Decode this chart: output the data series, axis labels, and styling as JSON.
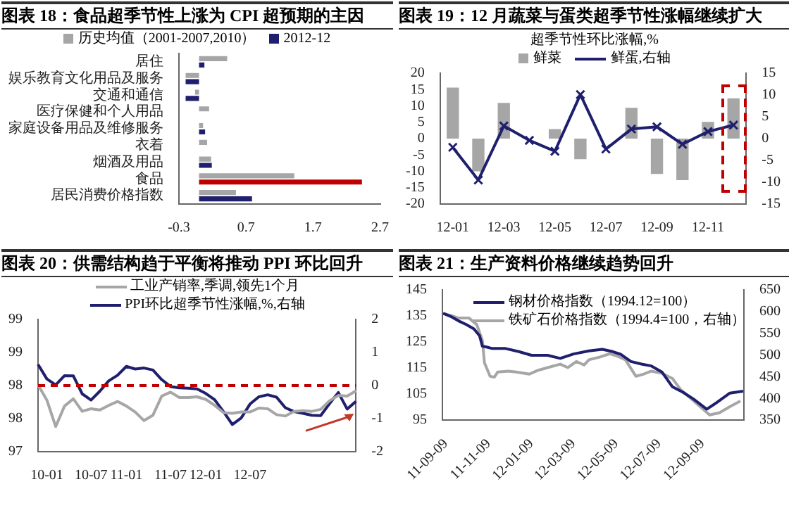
{
  "chart_data": [
    {
      "type": "bar",
      "orientation": "horizontal",
      "title": "图表 18：食品超季节性上涨为 CPI 超预期的主因",
      "categories": [
        "居住",
        "娱乐教育文化用品及服务",
        "交通和通信",
        "医疗保健和个人用品",
        "家庭设备用品及维修服务",
        "衣着",
        "烟酒及用品",
        "食品",
        "居民消费价格指数"
      ],
      "series": [
        {
          "name": "历史均值（2001-2007,2010）",
          "color": "#a6a6a6",
          "values": [
            0.42,
            -0.2,
            -0.06,
            0.15,
            0.06,
            0.12,
            0.18,
            1.42,
            0.55
          ]
        },
        {
          "name": "2012-12",
          "color": "#1f1f6e",
          "colors": [
            "#1f1f6e",
            "#1f1f6e",
            "#1f1f6e",
            "#1f1f6e",
            "#1f1f6e",
            "#1f1f6e",
            "#1f1f6e",
            "#c00000",
            "#1f1f6e"
          ],
          "values": [
            0.08,
            -0.2,
            -0.2,
            0,
            0.09,
            0,
            0.19,
            2.43,
            0.79
          ]
        }
      ],
      "xlim": [
        -0.3,
        2.7
      ],
      "xticks": [
        -0.3,
        0.7,
        1.7,
        2.7
      ],
      "legend": "top",
      "grid": false
    },
    {
      "type": "bar",
      "title": "图表 19：12 月蔬菜与蛋类超季节性涨幅继续扩大",
      "subtitle": "超季节性环比涨幅,%",
      "categories": [
        "12-01",
        null,
        "12-03",
        null,
        "12-05",
        null,
        "12-07",
        null,
        "12-09",
        null,
        "12-11",
        null
      ],
      "series": [
        {
          "name": "鲜菜",
          "type": "bar",
          "color": "#a6a6a6",
          "values": [
            15.6,
            -10,
            10.9,
            0,
            2.9,
            -6.3,
            null,
            9.4,
            -10.8,
            -12.7,
            5.1,
            12.3
          ]
        },
        {
          "name": "鲜蛋,右轴",
          "type": "line",
          "axis": "y2",
          "color": "#1f1f6e",
          "values": [
            -2.0,
            -9.5,
            2.9,
            -0.4,
            -2.9,
            10.1,
            -2.4,
            2.2,
            2.7,
            -1.3,
            1.6,
            3.1
          ]
        }
      ],
      "ylim": [
        -20,
        20
      ],
      "yticks": [
        -20,
        -15,
        -10,
        -5,
        0,
        5,
        10,
        15,
        20
      ],
      "y2lim": [
        -15,
        15
      ],
      "y2ticks": [
        -15,
        -10,
        -5,
        0,
        5,
        10,
        15
      ],
      "marker": "cross",
      "legend": "top",
      "grid": false
    },
    {
      "type": "line",
      "title": "图表 20：供需结构趋于平衡将推动 PPI 环比回升",
      "categories": [
        null,
        "10-01",
        null,
        null,
        null,
        null,
        "10-07",
        null,
        null,
        null,
        "11-01",
        null,
        null,
        null,
        null,
        "11-07",
        null,
        null,
        null,
        "12-01",
        null,
        null,
        null,
        null,
        "12-07",
        null,
        null,
        null,
        null,
        null,
        null,
        null,
        null,
        null,
        null,
        null,
        null
      ],
      "series": [
        {
          "name": "工业产销率,季调,领先1个月",
          "color": "#a6a6a6",
          "values": [
            98.01,
            97.78,
            97.38,
            97.69,
            97.8,
            97.61,
            97.65,
            97.63,
            97.7,
            97.76,
            97.69,
            97.6,
            97.47,
            97.55,
            97.84,
            97.9,
            97.82,
            97.82,
            97.83,
            97.79,
            97.7,
            97.59,
            97.58,
            97.6,
            97.6,
            97.66,
            97.65,
            97.56,
            97.54,
            97.61,
            97.62,
            97.61,
            97.64,
            97.77,
            97.85,
            97.84,
            97.92
          ]
        },
        {
          "name": "PPI环比超季节性涨幅,%,右轴",
          "axis": "y2",
          "color": "#1f1f6e",
          "values": [
            0.64,
            0.2,
            0.02,
            0.3,
            0.29,
            -0.25,
            -0.44,
            -0.17,
            0.14,
            0.31,
            0.58,
            0.5,
            0.53,
            0.47,
            0.18,
            -0.03,
            -0.07,
            -0.08,
            -0.1,
            -0.24,
            -0.43,
            -0.79,
            -1.18,
            -0.98,
            -0.56,
            -0.34,
            -0.28,
            -0.35,
            -0.67,
            -0.79,
            -0.84,
            -0.9,
            -0.91,
            -0.55,
            -0.21,
            -0.71,
            -0.48
          ]
        }
      ],
      "ylim": [
        97,
        99
      ],
      "yticks": [
        {
          "value": 97,
          "label": "97"
        },
        {
          "value": 97.5,
          "label": "98"
        },
        {
          "value": 98,
          "label": "98"
        },
        {
          "value": 98.5,
          "label": "99"
        },
        {
          "value": 99,
          "label": "99"
        }
      ],
      "y2lim": [
        -2,
        2
      ],
      "y2ticks": [
        -2,
        -1,
        0,
        1,
        2
      ],
      "ref_lines": [
        {
          "axis": "y2",
          "value": 0,
          "color": "#c00000",
          "line_style": "dashed"
        }
      ],
      "marker": "none",
      "legend": "top",
      "grid": false
    },
    {
      "type": "line",
      "title": "图表 21：生产资料价格继续趋势回升",
      "series": [
        {
          "name": "钢材价格指数（1994.12=100）",
          "color": "#1f1f6e",
          "x": [
            "2011-09-05",
            "2011-09-16",
            "2011-09-27",
            "2011-10-08",
            "2011-10-19",
            "2011-10-27",
            "2011-10-31",
            "2011-11-07",
            "2011-11-14",
            "2011-12-03",
            "2011-12-22",
            "2012-01-09",
            "2012-02-01",
            "2012-02-19",
            "2012-03-09",
            "2012-03-31",
            "2012-04-19",
            "2012-05-04",
            "2012-05-15",
            "2012-05-30",
            "2012-06-14",
            "2012-06-28",
            "2012-07-13",
            "2012-07-28",
            "2012-08-12",
            "2012-08-27",
            "2012-09-15",
            "2012-09-30",
            "2012-10-18",
            "2012-11-06"
          ],
          "values": [
            136,
            134.8,
            133.1,
            131.7,
            130,
            127.4,
            123.4,
            123,
            122.5,
            122.5,
            121.3,
            119.9,
            119.9,
            118.7,
            120.4,
            121.6,
            122.2,
            121.3,
            120.3,
            117.5,
            116.5,
            115.8,
            113.5,
            107.8,
            105.7,
            103.1,
            99.2,
            101.9,
            105.4,
            106.1
          ]
        },
        {
          "name": "铁矿石价格指数（1994.4=100，右轴）",
          "axis": "y2",
          "color": "#a6a6a6",
          "x": [
            "2011-09-05",
            "2011-09-16",
            "2011-09-27",
            "2011-10-12",
            "2011-10-23",
            "2011-10-31",
            "2011-11-03",
            "2011-11-11",
            "2011-11-17",
            "2011-11-22",
            "2011-12-07",
            "2011-12-18",
            "2012-01-06",
            "2012-01-17",
            "2012-02-01",
            "2012-02-19",
            "2012-03-01",
            "2012-03-13",
            "2012-03-24",
            "2012-03-31",
            "2012-04-15",
            "2012-04-30",
            "2012-05-11",
            "2012-05-22",
            "2012-06-06",
            "2012-06-17",
            "2012-06-28",
            "2012-07-13",
            "2012-07-28",
            "2012-08-09",
            "2012-08-24",
            "2012-09-08",
            "2012-09-19",
            "2012-10-03",
            "2012-10-18",
            "2012-11-02"
          ],
          "values": [
            596,
            591,
            585,
            585,
            570,
            534,
            482,
            451,
            449,
            461,
            463,
            461,
            456,
            464,
            471,
            479,
            471,
            485,
            477,
            489,
            495,
            503,
            497,
            489,
            451,
            456,
            463,
            458,
            446,
            420,
            399,
            378,
            362,
            367,
            381,
            394
          ]
        }
      ],
      "xlim": [
        "2011-09-04",
        "2012-11-07"
      ],
      "xticks": [
        {
          "value": "2011-09-09",
          "label": "11-09-09"
        },
        {
          "value": "2011-11-09",
          "label": "11-11-09"
        },
        {
          "value": "2012-01-09",
          "label": "12-01-09"
        },
        {
          "value": "2012-03-09",
          "label": "12-03-09"
        },
        {
          "value": "2012-05-09",
          "label": "12-05-09"
        },
        {
          "value": "2012-07-09",
          "label": "12-07-09"
        },
        {
          "value": "2012-09-09",
          "label": "12-09-09"
        }
      ],
      "ylim": [
        95,
        145
      ],
      "yticks": [
        95,
        105,
        115,
        125,
        135,
        145
      ],
      "y2lim": [
        350,
        650
      ],
      "y2ticks": [
        350,
        400,
        450,
        500,
        550,
        600,
        650
      ],
      "marker": "none",
      "legend": "top left",
      "grid": false
    }
  ]
}
